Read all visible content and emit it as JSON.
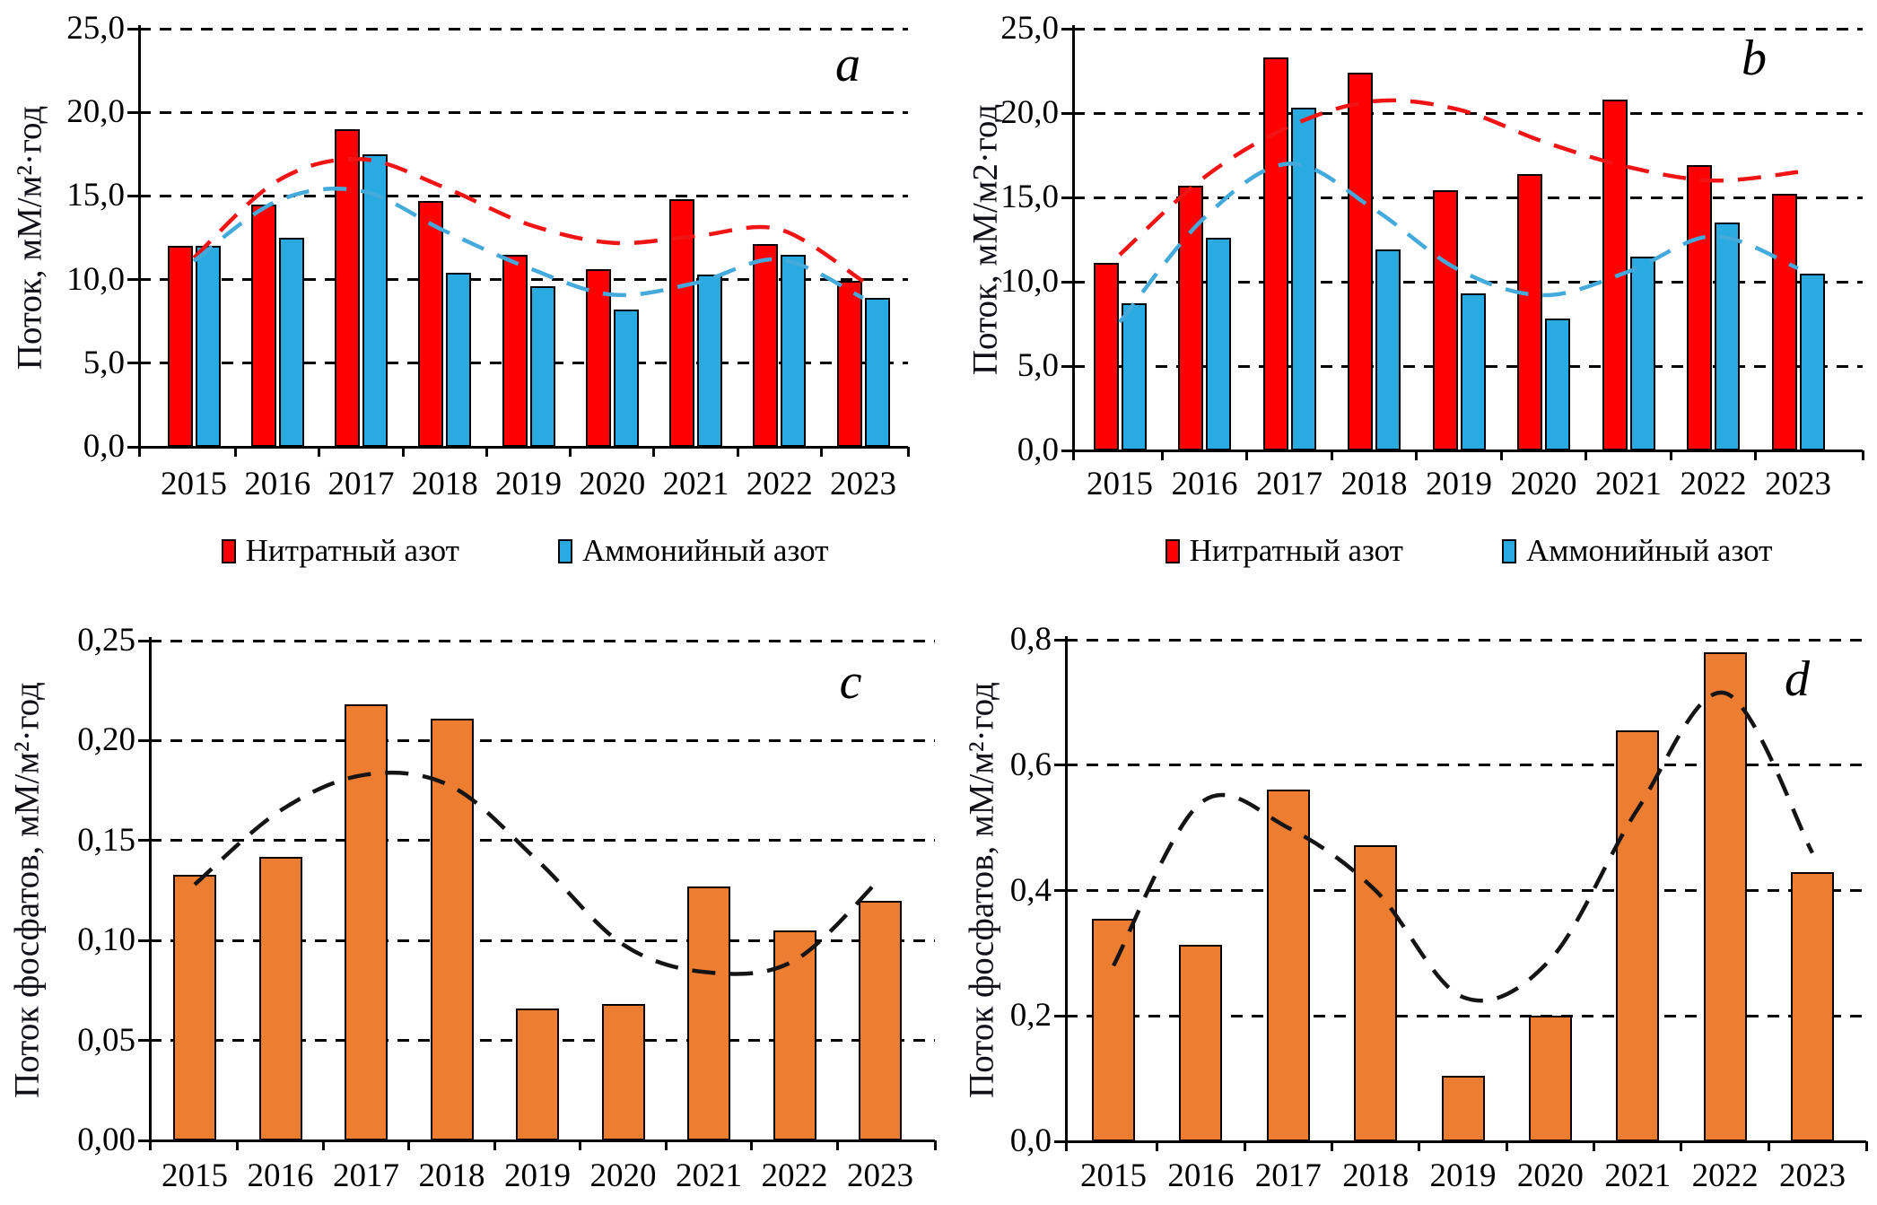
{
  "figure": {
    "description": "Four-panel bar chart figure of annual fluxes with polynomial dashed trend lines",
    "panel_letters": [
      "a",
      "b",
      "c",
      "d"
    ],
    "background": "#ffffff"
  },
  "colors": {
    "nitrate": "#ff0000",
    "ammonium": "#29abe2",
    "phosphate": "#ed7d31",
    "nitrate_trend": "#f01414",
    "ammonium_trend": "#44a9db",
    "phosphate_trend": "#141414",
    "axis": "#000000",
    "text": "#000000"
  },
  "chart_data": [
    {
      "id": "a",
      "panel_label": "a",
      "type": "bar",
      "ylabel": "Поток, мМ/м²·год",
      "ylim": [
        0,
        25
      ],
      "ytick_step": 5,
      "ytick_labels": [
        "0,0",
        "5,0",
        "10,0",
        "15,0",
        "20,0",
        "25,0"
      ],
      "grid": "horizontal-dashed",
      "legend_position": "bottom",
      "categories": [
        "2015",
        "2016",
        "2017",
        "2018",
        "2019",
        "2020",
        "2021",
        "2022",
        "2023"
      ],
      "series": [
        {
          "name": "Нитратный азот",
          "color": "#ff0000",
          "values": [
            12.0,
            14.5,
            19.0,
            14.7,
            11.5,
            10.6,
            14.8,
            12.1,
            9.9
          ]
        },
        {
          "name": "Аммонийный азот",
          "color": "#29abe2",
          "values": [
            12.0,
            12.5,
            17.5,
            10.4,
            9.6,
            8.2,
            10.3,
            11.5,
            8.9
          ]
        }
      ],
      "trend_lines": [
        {
          "for": "Нитратный азот",
          "style": "dashed-polynomial",
          "color": "#f01414",
          "values": [
            11.3,
            15.9,
            17.2,
            15.5,
            13.3,
            12.2,
            12.6,
            13.0,
            9.9
          ]
        },
        {
          "for": "Аммонийный азот",
          "style": "dashed-polynomial",
          "color": "#44a9db",
          "values": [
            11.1,
            14.7,
            15.3,
            12.9,
            10.7,
            9.1,
            9.8,
            11.2,
            8.9
          ]
        }
      ]
    },
    {
      "id": "b",
      "panel_label": "b",
      "type": "bar",
      "ylabel": "Поток, мМ/м2·год",
      "ylim": [
        0,
        25
      ],
      "ytick_step": 5,
      "ytick_labels": [
        "0,0",
        "5,0",
        "10,0",
        "15,0",
        "20,0",
        "25,0"
      ],
      "grid": "horizontal-dashed",
      "legend_position": "bottom",
      "categories": [
        "2015",
        "2016",
        "2017",
        "2018",
        "2019",
        "2020",
        "2021",
        "2022",
        "2023"
      ],
      "series": [
        {
          "name": "Нитратный азот",
          "color": "#ff0000",
          "values": [
            11.1,
            15.7,
            23.3,
            22.4,
            15.4,
            16.4,
            20.8,
            16.9,
            15.2
          ]
        },
        {
          "name": "Аммонийный азот",
          "color": "#29abe2",
          "values": [
            8.7,
            12.6,
            20.3,
            11.9,
            9.3,
            7.8,
            11.5,
            13.5,
            10.5
          ]
        }
      ],
      "trend_lines": [
        {
          "for": "Нитратный азот",
          "style": "dashed-polynomial",
          "color": "#f01414",
          "values": [
            11.6,
            16.2,
            19.2,
            20.7,
            20.2,
            18.3,
            16.8,
            16.0,
            16.5
          ]
        },
        {
          "for": "Аммонийный азот",
          "style": "dashed-polynomial",
          "color": "#44a9db",
          "values": [
            7.6,
            13.8,
            17.0,
            14.3,
            10.7,
            9.2,
            10.6,
            12.7,
            10.8
          ]
        }
      ]
    },
    {
      "id": "c",
      "panel_label": "c",
      "type": "bar",
      "ylabel": "Поток фосфатов, мМ/м²·год",
      "ylim": [
        0,
        0.25
      ],
      "ytick_step": 0.05,
      "ytick_labels": [
        "0,00",
        "0,05",
        "0,10",
        "0,15",
        "0,20",
        "0,25"
      ],
      "grid": "horizontal-dashed",
      "legend_position": "none",
      "categories": [
        "2015",
        "2016",
        "2017",
        "2018",
        "2019",
        "2020",
        "2021",
        "2022",
        "2023"
      ],
      "series": [
        {
          "name": "Поток фосфатов",
          "color": "#ed7d31",
          "values": [
            0.133,
            0.142,
            0.218,
            0.211,
            0.066,
            0.068,
            0.127,
            0.105,
            0.12
          ]
        }
      ],
      "trend_lines": [
        {
          "for": "Поток фосфатов",
          "style": "dashed-polynomial",
          "color": "#141414",
          "values": [
            0.128,
            0.165,
            0.183,
            0.177,
            0.14,
            0.098,
            0.084,
            0.09,
            0.131
          ]
        }
      ]
    },
    {
      "id": "d",
      "panel_label": "d",
      "type": "bar",
      "ylabel": "Поток фосфатов, мМ/м²·год",
      "ylim": [
        0,
        0.8
      ],
      "ytick_step": 0.2,
      "ytick_labels": [
        "0,0",
        "0,2",
        "0,4",
        "0,6",
        "0,8"
      ],
      "grid": "horizontal-dashed",
      "legend_position": "none",
      "categories": [
        "2015",
        "2016",
        "2017",
        "2018",
        "2019",
        "2020",
        "2021",
        "2022",
        "2023"
      ],
      "series": [
        {
          "name": "Поток фосфатов",
          "color": "#ed7d31",
          "values": [
            0.355,
            0.313,
            0.561,
            0.472,
            0.105,
            0.2,
            0.655,
            0.78,
            0.43
          ]
        }
      ],
      "trend_lines": [
        {
          "for": "Поток фосфатов",
          "style": "dashed-polynomial",
          "color": "#141414",
          "values": [
            0.28,
            0.54,
            0.5,
            0.4,
            0.23,
            0.29,
            0.53,
            0.715,
            0.46
          ]
        }
      ]
    }
  ]
}
